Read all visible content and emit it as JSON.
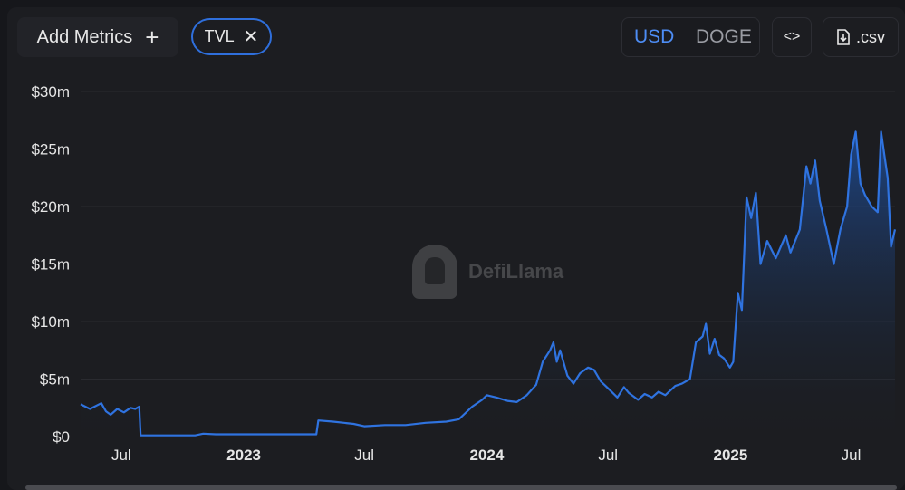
{
  "toolbar": {
    "add_metrics_label": "Add Metrics",
    "add_icon": "plus-icon",
    "metric_chip": "TVL",
    "remove_icon": "close-icon",
    "currency_options": [
      "USD",
      "DOGE"
    ],
    "selected_currency": "USD",
    "embed_label": "<>",
    "embed_icon": "code-icon",
    "csv_label": ".csv",
    "csv_icon": "download-file-icon"
  },
  "watermark": {
    "brand": "DefiLlama",
    "logo_icon": "llama-logo-icon"
  },
  "colors": {
    "line": "#2f73e0",
    "area_top": "#1e4c96",
    "area_bottom": "#1c1d21",
    "accent": "#4d8df5"
  },
  "chart_data": {
    "type": "area",
    "title": "",
    "xlabel": "",
    "ylabel": "",
    "ylim": [
      0,
      30
    ],
    "y_unit": "USD millions",
    "y_ticks": [
      0,
      5,
      10,
      15,
      20,
      25,
      30
    ],
    "y_tick_labels": [
      "$0",
      "$5m",
      "$10m",
      "$15m",
      "$20m",
      "$25m",
      "$30m"
    ],
    "x_range": [
      "2022-05-01",
      "2025-09-05"
    ],
    "x_ticks": [
      {
        "date": "2022-07-01",
        "label": "Jul",
        "bold": false
      },
      {
        "date": "2023-01-01",
        "label": "2023",
        "bold": true
      },
      {
        "date": "2023-07-01",
        "label": "Jul",
        "bold": false
      },
      {
        "date": "2024-01-01",
        "label": "2024",
        "bold": true
      },
      {
        "date": "2024-07-01",
        "label": "Jul",
        "bold": false
      },
      {
        "date": "2025-01-01",
        "label": "2025",
        "bold": true
      },
      {
        "date": "2025-07-01",
        "label": "Jul",
        "bold": false
      }
    ],
    "grid": true,
    "legend": "none",
    "series": [
      {
        "values": [
          [
            "2022-05-01",
            2.8
          ],
          [
            "2022-05-15",
            2.4
          ],
          [
            "2022-06-01",
            2.9
          ],
          [
            "2022-06-08",
            2.2
          ],
          [
            "2022-06-15",
            1.9
          ],
          [
            "2022-06-25",
            2.4
          ],
          [
            "2022-07-05",
            2.1
          ],
          [
            "2022-07-15",
            2.5
          ],
          [
            "2022-07-22",
            2.4
          ],
          [
            "2022-07-28",
            2.6
          ],
          [
            "2022-07-30",
            0.1
          ],
          [
            "2022-09-01",
            0.1
          ],
          [
            "2022-10-20",
            0.1
          ],
          [
            "2022-11-01",
            0.25
          ],
          [
            "2022-11-20",
            0.2
          ],
          [
            "2023-01-01",
            0.2
          ],
          [
            "2023-04-01",
            0.2
          ],
          [
            "2023-04-20",
            0.2
          ],
          [
            "2023-04-23",
            1.4
          ],
          [
            "2023-05-15",
            1.3
          ],
          [
            "2023-06-15",
            1.1
          ],
          [
            "2023-07-01",
            0.9
          ],
          [
            "2023-08-01",
            1.0
          ],
          [
            "2023-09-01",
            1.0
          ],
          [
            "2023-10-01",
            1.2
          ],
          [
            "2023-11-01",
            1.3
          ],
          [
            "2023-11-20",
            1.5
          ],
          [
            "2023-12-10",
            2.6
          ],
          [
            "2023-12-25",
            3.2
          ],
          [
            "2024-01-01",
            3.6
          ],
          [
            "2024-01-15",
            3.4
          ],
          [
            "2024-02-01",
            3.1
          ],
          [
            "2024-02-15",
            3.0
          ],
          [
            "2024-03-01",
            3.6
          ],
          [
            "2024-03-15",
            4.5
          ],
          [
            "2024-03-25",
            6.5
          ],
          [
            "2024-04-05",
            7.5
          ],
          [
            "2024-04-10",
            8.2
          ],
          [
            "2024-04-15",
            6.5
          ],
          [
            "2024-04-20",
            7.5
          ],
          [
            "2024-05-01",
            5.3
          ],
          [
            "2024-05-10",
            4.6
          ],
          [
            "2024-05-20",
            5.5
          ],
          [
            "2024-06-01",
            6.0
          ],
          [
            "2024-06-10",
            5.8
          ],
          [
            "2024-06-20",
            4.8
          ],
          [
            "2024-07-01",
            4.2
          ],
          [
            "2024-07-15",
            3.4
          ],
          [
            "2024-07-25",
            4.3
          ],
          [
            "2024-08-01",
            3.8
          ],
          [
            "2024-08-15",
            3.2
          ],
          [
            "2024-08-25",
            3.7
          ],
          [
            "2024-09-05",
            3.4
          ],
          [
            "2024-09-15",
            3.9
          ],
          [
            "2024-09-25",
            3.6
          ],
          [
            "2024-10-10",
            4.4
          ],
          [
            "2024-10-20",
            4.6
          ],
          [
            "2024-11-01",
            5.0
          ],
          [
            "2024-11-10",
            8.2
          ],
          [
            "2024-11-20",
            8.7
          ],
          [
            "2024-11-25",
            9.8
          ],
          [
            "2024-12-01",
            7.2
          ],
          [
            "2024-12-08",
            8.5
          ],
          [
            "2024-12-15",
            7.1
          ],
          [
            "2024-12-22",
            6.8
          ],
          [
            "2024-12-31",
            6.0
          ],
          [
            "2025-01-05",
            6.5
          ],
          [
            "2025-01-12",
            12.5
          ],
          [
            "2025-01-18",
            11.0
          ],
          [
            "2025-01-25",
            20.8
          ],
          [
            "2025-02-01",
            19.0
          ],
          [
            "2025-02-08",
            21.2
          ],
          [
            "2025-02-15",
            15.0
          ],
          [
            "2025-02-25",
            17.0
          ],
          [
            "2025-03-10",
            15.5
          ],
          [
            "2025-03-25",
            17.5
          ],
          [
            "2025-04-01",
            16.0
          ],
          [
            "2025-04-15",
            18.0
          ],
          [
            "2025-04-25",
            23.5
          ],
          [
            "2025-05-01",
            22.0
          ],
          [
            "2025-05-08",
            24.0
          ],
          [
            "2025-05-15",
            20.5
          ],
          [
            "2025-05-25",
            18.0
          ],
          [
            "2025-06-05",
            15.0
          ],
          [
            "2025-06-15",
            18.0
          ],
          [
            "2025-06-25",
            20.0
          ],
          [
            "2025-07-01",
            24.5
          ],
          [
            "2025-07-08",
            26.5
          ],
          [
            "2025-07-15",
            22.0
          ],
          [
            "2025-07-22",
            21.0
          ],
          [
            "2025-08-01",
            20.0
          ],
          [
            "2025-08-10",
            19.5
          ],
          [
            "2025-08-15",
            26.5
          ],
          [
            "2025-08-20",
            24.5
          ],
          [
            "2025-08-25",
            22.5
          ],
          [
            "2025-08-30",
            16.5
          ],
          [
            "2025-09-05",
            18.0
          ]
        ]
      }
    ]
  }
}
